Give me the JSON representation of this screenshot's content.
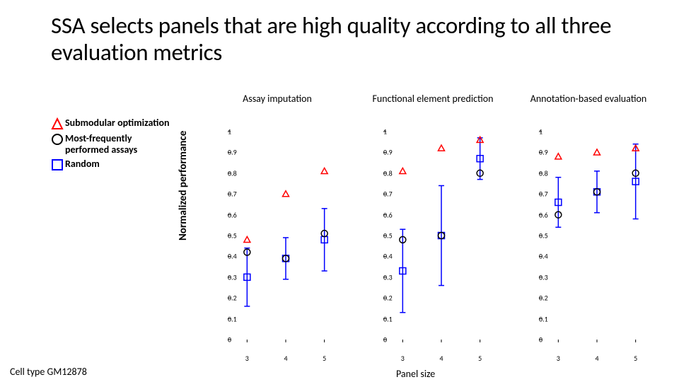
{
  "title": "SSA selects panels that are high quality according to all three evaluation metrics",
  "ylabel": "Normalized performance",
  "xlabel": "Panel size",
  "footer": "Cell type GM12878",
  "legend": [
    {
      "symbol": "triangle",
      "color": "#ff0000",
      "label": "Submodular optimization"
    },
    {
      "symbol": "circle",
      "color": "#000000",
      "label": "Most-frequently performed assays"
    },
    {
      "symbol": "square",
      "color": "#0000ff",
      "label": "Random"
    }
  ],
  "colors": {
    "triangle": "#ff0000",
    "circle": "#000000",
    "square": "#0000ff",
    "errorbar": "#0000ff",
    "axis": "#000000",
    "background": "#ffffff"
  },
  "panels": [
    {
      "title": "Assay imputation",
      "ylim": [
        0,
        1
      ],
      "ytick_step": 0.1,
      "xvals": [
        3,
        4,
        5
      ],
      "series": {
        "triangle": {
          "x": [
            3,
            4,
            5
          ],
          "y": [
            0.48,
            0.7,
            0.81
          ]
        },
        "circle": {
          "x": [
            3,
            4,
            5
          ],
          "y": [
            0.42,
            0.39,
            0.51
          ]
        },
        "square": {
          "x": [
            3,
            4,
            5
          ],
          "y": [
            0.3,
            0.39,
            0.48
          ],
          "err": [
            0.14,
            0.1,
            0.15
          ]
        }
      }
    },
    {
      "title": "Functional element prediction",
      "ylim": [
        0,
        1
      ],
      "ytick_step": 0.1,
      "xvals": [
        3,
        4,
        5
      ],
      "series": {
        "triangle": {
          "x": [
            3,
            4,
            5
          ],
          "y": [
            0.81,
            0.92,
            0.96
          ]
        },
        "circle": {
          "x": [
            3,
            4,
            5
          ],
          "y": [
            0.48,
            0.5,
            0.8
          ]
        },
        "square": {
          "x": [
            3,
            4,
            5
          ],
          "y": [
            0.33,
            0.5,
            0.87
          ],
          "err": [
            0.2,
            0.24,
            0.1
          ]
        }
      }
    },
    {
      "title": "Annotation-based evaluation",
      "ylim": [
        0,
        1
      ],
      "ytick_step": 0.1,
      "xvals": [
        3,
        4,
        5
      ],
      "series": {
        "triangle": {
          "x": [
            3,
            4,
            5
          ],
          "y": [
            0.88,
            0.9,
            0.92
          ]
        },
        "circle": {
          "x": [
            3,
            4,
            5
          ],
          "y": [
            0.6,
            0.71,
            0.8
          ]
        },
        "square": {
          "x": [
            3,
            4,
            5
          ],
          "y": [
            0.66,
            0.71,
            0.76
          ],
          "err": [
            0.12,
            0.1,
            0.18
          ]
        }
      }
    }
  ],
  "marker_size": 9,
  "line_width": 1.5,
  "axis_fontsize": 10
}
